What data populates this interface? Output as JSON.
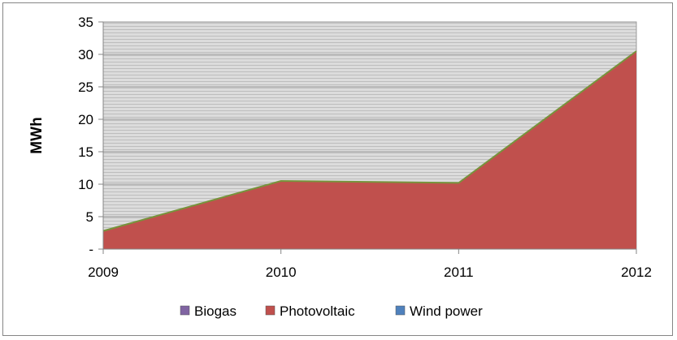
{
  "chart_data": {
    "type": "area",
    "title": "",
    "xlabel": "",
    "ylabel": "MWh",
    "categories": [
      "2009",
      "2010",
      "2011",
      "2012"
    ],
    "ylim": [
      0,
      35
    ],
    "yticks": [
      {
        "value": 0,
        "label": "-"
      },
      {
        "value": 5,
        "label": "5"
      },
      {
        "value": 10,
        "label": "10"
      },
      {
        "value": 15,
        "label": "15"
      },
      {
        "value": 20,
        "label": "20"
      },
      {
        "value": 25,
        "label": "25"
      },
      {
        "value": 30,
        "label": "30"
      },
      {
        "value": 35,
        "label": "35"
      }
    ],
    "series": [
      {
        "name": "Biogas",
        "color": "#8064A2",
        "values": [
          0,
          0,
          0,
          0
        ]
      },
      {
        "name": "Photovoltaic",
        "color": "#C0504D",
        "values": [
          2.8,
          10.5,
          10.2,
          30.5
        ]
      },
      {
        "name": "Wind power",
        "color": "#4F81BD",
        "values": [
          0,
          0,
          0,
          0
        ]
      }
    ],
    "stacked": true,
    "grid": true,
    "legend_position": "bottom",
    "plot_background": "#DEDEDE"
  }
}
